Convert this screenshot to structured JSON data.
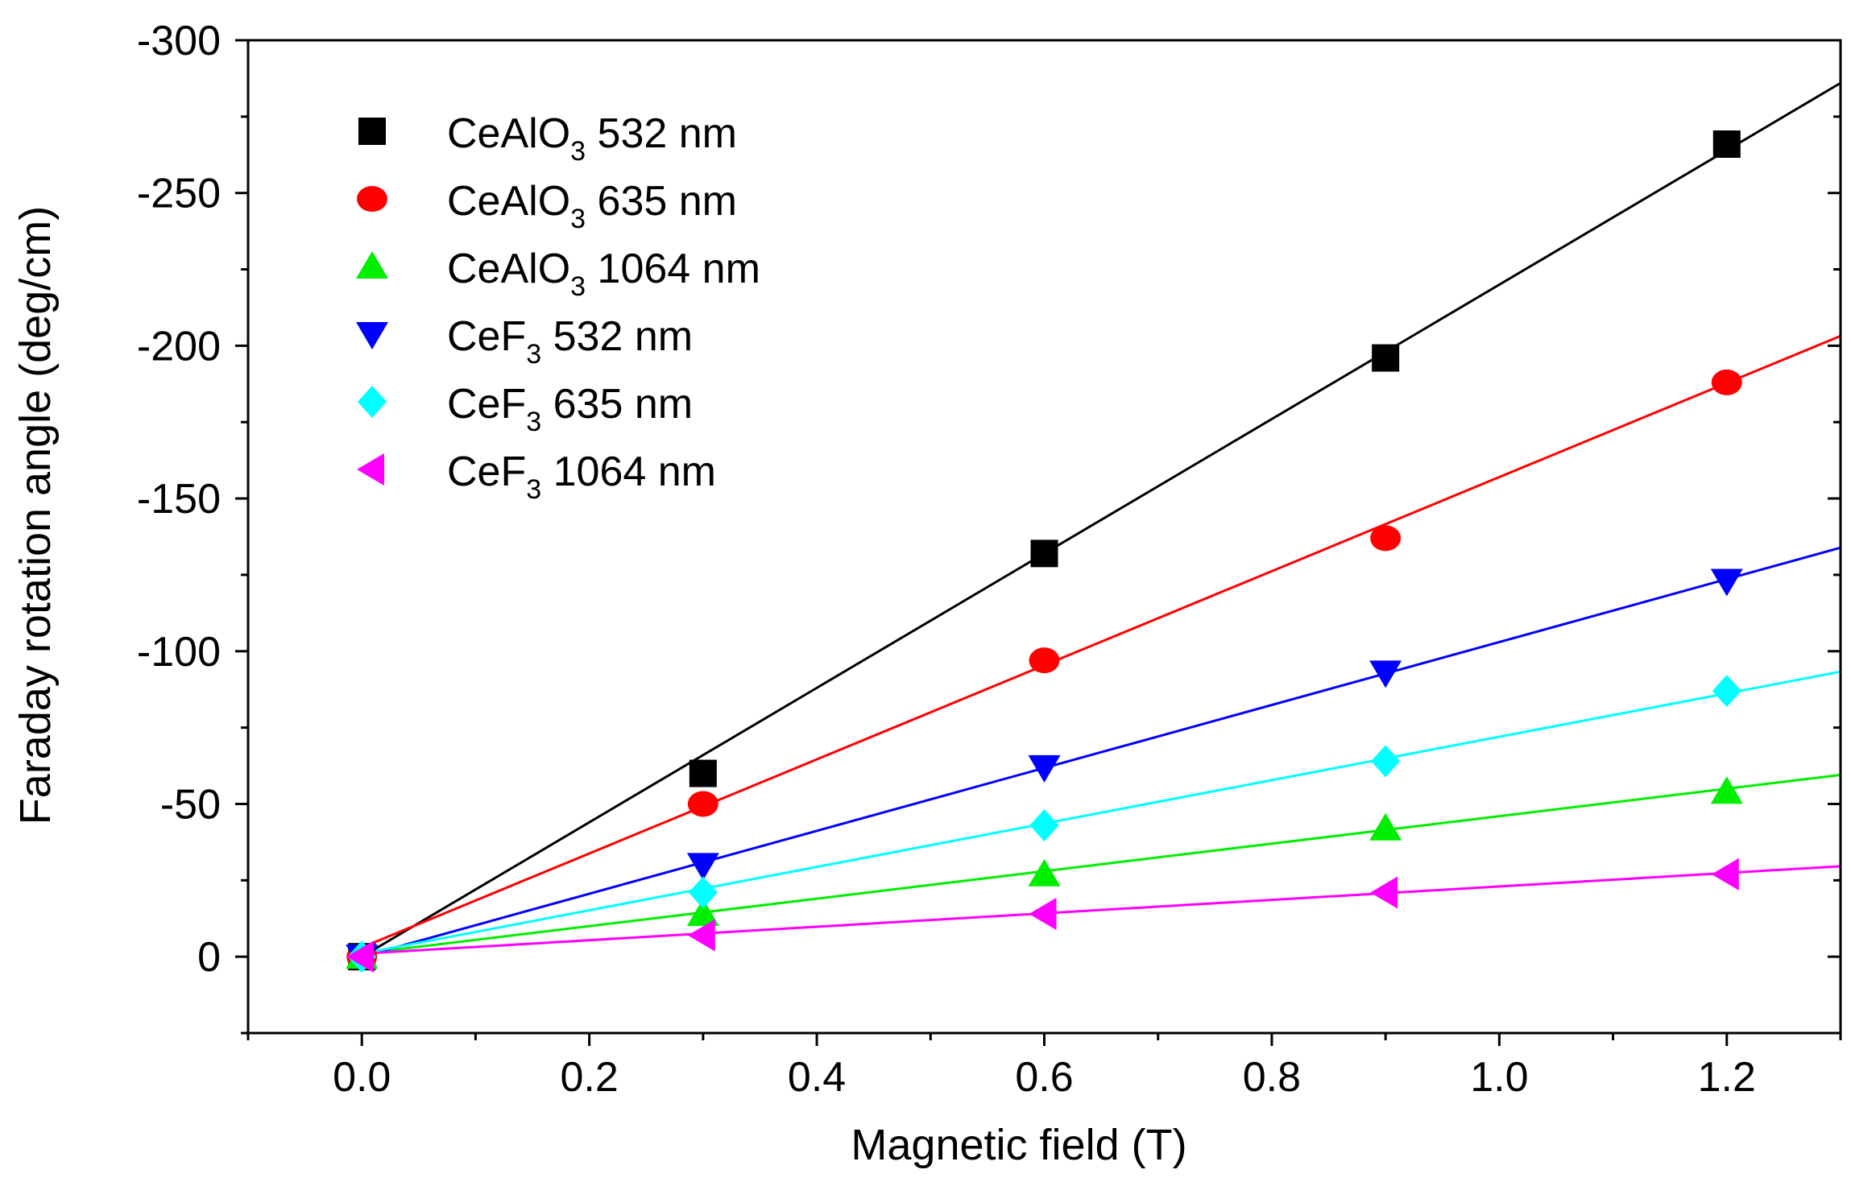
{
  "chart_data": {
    "type": "scatter",
    "xlabel": "Magnetic field (T)",
    "ylabel": "Faraday rotation angle (deg/cm)",
    "xlim": [
      -0.1,
      1.3
    ],
    "ylim": [
      -300,
      25
    ],
    "y_axis_reversed": true,
    "x_ticks": [
      "0.0",
      "0.2",
      "0.4",
      "0.6",
      "0.8",
      "1.0",
      "1.2"
    ],
    "y_ticks": [
      "-300",
      "-250",
      "-200",
      "-150",
      "-100",
      "-50",
      "0"
    ],
    "legend_position": "top-left",
    "x": [
      0.0,
      0.3,
      0.6,
      0.9,
      1.2
    ],
    "series": [
      {
        "name": "CeAlO3 532 nm",
        "label_main": "CeAlO",
        "label_sub": "3",
        "label_rest": " 532 nm",
        "color": "#000000",
        "marker": "square",
        "values": [
          0,
          -60,
          -132,
          -196,
          -266
        ],
        "fit_slope": -220,
        "fit_intercept": 0
      },
      {
        "name": "CeAlO3 635 nm",
        "label_main": "CeAlO",
        "label_sub": "3",
        "label_rest": " 635 nm",
        "color": "#ff0000",
        "marker": "circle",
        "values": [
          0,
          -50,
          -97,
          -137,
          -188
        ],
        "fit_slope": -154,
        "fit_intercept": -3
      },
      {
        "name": "CeAlO3 1064 nm",
        "label_main": "CeAlO",
        "label_sub": "3",
        "label_rest": " 1064 nm",
        "color": "#00ee00",
        "marker": "triangle-up",
        "values": [
          0,
          -14,
          -27,
          -42,
          -54
        ],
        "fit_slope": -45,
        "fit_intercept": -1
      },
      {
        "name": "CeF3 532 nm",
        "label_main": "CeF",
        "label_sub": "3",
        "label_rest": " 532 nm",
        "color": "#0000ff",
        "marker": "triangle-down",
        "values": [
          0,
          -30,
          -62,
          -93,
          -123
        ],
        "fit_slope": -103,
        "fit_intercept": 0
      },
      {
        "name": "CeF3 635 nm",
        "label_main": "CeF",
        "label_sub": "3",
        "label_rest": " 635 nm",
        "color": "#00ffff",
        "marker": "diamond",
        "values": [
          0,
          -21,
          -43,
          -64,
          -87
        ],
        "fit_slope": -71,
        "fit_intercept": -1
      },
      {
        "name": "CeF3 1064 nm",
        "label_main": "CeF",
        "label_sub": "3",
        "label_rest": " 1064 nm",
        "color": "#ff00ff",
        "marker": "triangle-left",
        "values": [
          0,
          -7,
          -14,
          -21,
          -27
        ],
        "fit_slope": -22,
        "fit_intercept": -1
      }
    ]
  }
}
